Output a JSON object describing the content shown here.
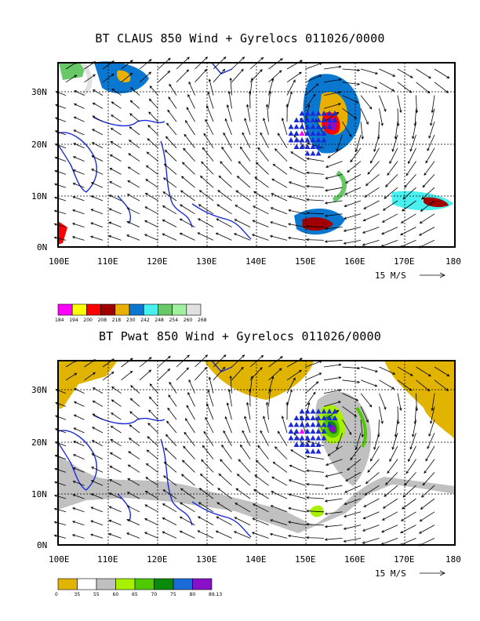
{
  "panels": [
    {
      "title": "BT CLAUS 850 Wind + Gyrelocs 011026/0000",
      "lat_labels": [
        "30N",
        "20N",
        "10N",
        "0N"
      ],
      "lon_labels": [
        "100E",
        "110E",
        "120E",
        "130E",
        "140E",
        "150E",
        "160E",
        "170E",
        "180"
      ],
      "vector_key": "15 M/S",
      "colorbar": {
        "colors": [
          "#ff00ff",
          "#ffff00",
          "#ff0000",
          "#a00000",
          "#e8b000",
          "#0a78d0",
          "#48f0f0",
          "#68c868",
          "#a0f0a0",
          "#e0e0e0"
        ],
        "labels": [
          "184",
          "194",
          "200",
          "208",
          "218",
          "230",
          "242",
          "248",
          "254",
          "260",
          "268"
        ]
      }
    },
    {
      "title": "BT Pwat 850 Wind + Gyrelocs 011026/0000",
      "lat_labels": [
        "30N",
        "20N",
        "10N",
        "0N"
      ],
      "lon_labels": [
        "100E",
        "110E",
        "120E",
        "130E",
        "140E",
        "150E",
        "160E",
        "170E",
        "180"
      ],
      "vector_key": "15 M/S",
      "colorbar": {
        "colors": [
          "#e0b400",
          "#ffffff",
          "#c0c0c0",
          "#a8f000",
          "#50c800",
          "#0a8a0a",
          "#1a6ad8",
          "#8a10c8"
        ],
        "labels": [
          "0",
          "35",
          "55",
          "60",
          "65",
          "70",
          "75",
          "80",
          "89.13"
        ]
      }
    }
  ]
}
